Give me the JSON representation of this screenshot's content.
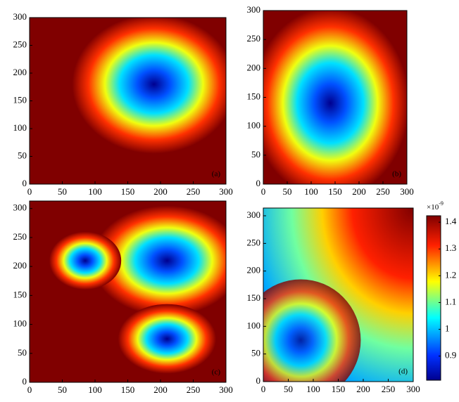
{
  "chart_data": [
    {
      "type": "heatmap",
      "label": "(a)",
      "xlim": [
        0,
        300
      ],
      "ylim": [
        0,
        300
      ],
      "xticks": [
        0,
        50,
        100,
        150,
        200,
        250,
        300
      ],
      "yticks": [
        0,
        50,
        100,
        150,
        200,
        250,
        300
      ]
    },
    {
      "type": "heatmap",
      "label": "(b)",
      "xlim": [
        0,
        300
      ],
      "ylim": [
        0,
        300
      ],
      "xticks": [
        0,
        50,
        100,
        150,
        200,
        250,
        300
      ],
      "yticks": [
        0,
        50,
        100,
        150,
        200,
        250,
        300
      ]
    },
    {
      "type": "heatmap",
      "label": "(c)",
      "xlim": [
        0,
        300
      ],
      "ylim": [
        0,
        313
      ],
      "xticks": [
        0,
        50,
        100,
        150,
        200,
        250,
        300
      ],
      "yticks": [
        0,
        50,
        100,
        150,
        200,
        250,
        300
      ]
    },
    {
      "type": "heatmap",
      "label": "(d)",
      "xlim": [
        0,
        300
      ],
      "ylim": [
        0,
        314
      ],
      "xticks": [
        0,
        50,
        100,
        150,
        200,
        250,
        300
      ],
      "yticks": [
        0,
        50,
        100,
        150,
        200,
        250,
        300
      ],
      "colorbar": {
        "clim": [
          0.81,
          1.424
        ],
        "ticks": [
          0.9,
          1,
          1.1,
          1.2,
          1.3,
          1.4
        ],
        "multiplier": "×10",
        "exponent": "-9"
      }
    }
  ]
}
